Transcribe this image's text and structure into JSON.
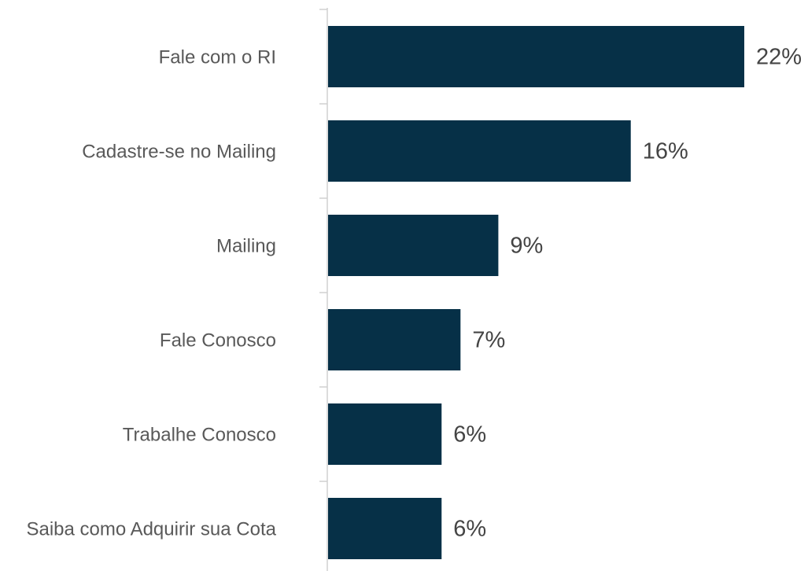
{
  "chart_data": {
    "type": "bar",
    "orientation": "horizontal",
    "categories": [
      "Fale com o RI",
      "Cadastre-se no Mailing",
      "Mailing",
      "Fale Conosco",
      "Trabalhe Conosco",
      "Saiba como Adquirir sua Cota"
    ],
    "values": [
      22,
      16,
      9,
      7,
      6,
      6
    ],
    "value_labels": [
      "22%",
      "16%",
      "9%",
      "7%",
      "6%",
      "6%"
    ],
    "color": "#063047"
  }
}
